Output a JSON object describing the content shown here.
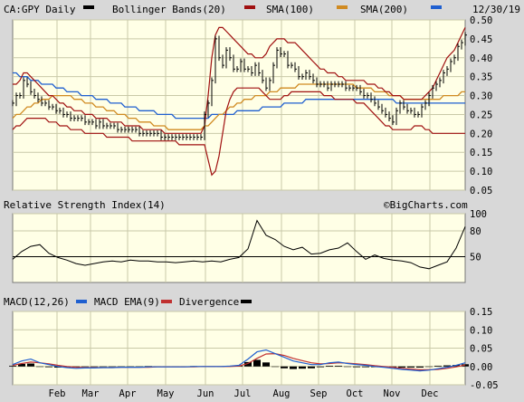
{
  "header": {
    "symbol_label": "CA:GPY Daily",
    "bollinger_label": "Bollinger Bands(20)",
    "sma100_label": "SMA(100)",
    "sma200_label": "SMA(200)",
    "date_label": "12/30/19"
  },
  "watermark": "©BigCharts.com",
  "rsi_panel": {
    "title": "Relative Strength Index(14)"
  },
  "macd_panel": {
    "macd_label": "MACD(12,26)",
    "ema_label": "MACD EMA(9)",
    "divergence_label": "Divergence"
  },
  "colors": {
    "background": "#d8d8d8",
    "panel_bg": "#ffffe6",
    "grid": "#c9c9a8",
    "price": "#000000",
    "bollinger": "#a01010",
    "sma100": "#a01010",
    "sma200": "#d08a20",
    "sma200_alt": "#1f5fd0",
    "macd": "#000000",
    "macd_ema": "#1f5fd0",
    "signal": "#c03030",
    "divergence": "#000000"
  },
  "chart_data": [
    {
      "type": "ohlc",
      "title": "CA:GPY Daily",
      "x_labels": [
        "Feb",
        "Mar",
        "Apr",
        "May",
        "Jun",
        "Jul",
        "Aug",
        "Sep",
        "Oct",
        "Nov",
        "Dec"
      ],
      "y_ticks": [
        0.05,
        0.1,
        0.15,
        0.2,
        0.25,
        0.3,
        0.35,
        0.4,
        0.45,
        0.5
      ],
      "y_tick_labels": [
        "0.05",
        "0.10",
        "0.15",
        "0.20",
        "0.25",
        "0.30",
        "0.35",
        "0.40",
        "0.45",
        "0.50"
      ],
      "ylim": [
        0.05,
        0.5
      ],
      "grid": true,
      "close_x": [
        0,
        4,
        8,
        12,
        16,
        20,
        24,
        28,
        32,
        36,
        40,
        44,
        48,
        52,
        56,
        60,
        64,
        68,
        72,
        76,
        80,
        84,
        88,
        92,
        96,
        100,
        104,
        108,
        112,
        116,
        120,
        124,
        128,
        132,
        136,
        140,
        144,
        148,
        152,
        156,
        160,
        164,
        168,
        172,
        176,
        180,
        184,
        188,
        192,
        196,
        200,
        204,
        208,
        212,
        216,
        220,
        224,
        228,
        232,
        236,
        240,
        244,
        248,
        252,
        256,
        260,
        264,
        268,
        272,
        276,
        280,
        284,
        288,
        292,
        296,
        300,
        304,
        308,
        312,
        316,
        320,
        324,
        328,
        332,
        336,
        340,
        344,
        348,
        352,
        356,
        360,
        364,
        368,
        372,
        376,
        380,
        384,
        388,
        392,
        396,
        400,
        404,
        408,
        412,
        416,
        420,
        424,
        428,
        432,
        436,
        440,
        444,
        448,
        452,
        456,
        460,
        464,
        468,
        472,
        476,
        480,
        484,
        488,
        492,
        496,
        500
      ],
      "close": [
        0.28,
        0.3,
        0.3,
        0.34,
        0.33,
        0.31,
        0.3,
        0.29,
        0.28,
        0.28,
        0.27,
        0.27,
        0.26,
        0.26,
        0.25,
        0.25,
        0.24,
        0.24,
        0.24,
        0.24,
        0.23,
        0.23,
        0.23,
        0.22,
        0.23,
        0.22,
        0.22,
        0.22,
        0.22,
        0.21,
        0.21,
        0.21,
        0.21,
        0.21,
        0.21,
        0.2,
        0.2,
        0.2,
        0.2,
        0.2,
        0.2,
        0.19,
        0.19,
        0.19,
        0.19,
        0.19,
        0.19,
        0.19,
        0.19,
        0.19,
        0.19,
        0.19,
        0.19,
        0.25,
        0.28,
        0.34,
        0.45,
        0.4,
        0.38,
        0.42,
        0.4,
        0.37,
        0.37,
        0.39,
        0.37,
        0.37,
        0.36,
        0.38,
        0.36,
        0.34,
        0.32,
        0.34,
        0.38,
        0.42,
        0.41,
        0.41,
        0.38,
        0.38,
        0.37,
        0.35,
        0.35,
        0.36,
        0.35,
        0.34,
        0.33,
        0.33,
        0.33,
        0.32,
        0.33,
        0.33,
        0.33,
        0.33,
        0.32,
        0.32,
        0.32,
        0.32,
        0.31,
        0.3,
        0.3,
        0.29,
        0.28,
        0.27,
        0.26,
        0.25,
        0.24,
        0.23,
        0.26,
        0.28,
        0.27,
        0.26,
        0.26,
        0.25,
        0.25,
        0.27,
        0.28,
        0.3,
        0.32,
        0.33,
        0.34,
        0.36,
        0.37,
        0.39,
        0.4,
        0.43,
        0.44,
        0.46
      ],
      "bb_upper": [
        0.33,
        0.33,
        0.34,
        0.36,
        0.36,
        0.35,
        0.34,
        0.33,
        0.32,
        0.31,
        0.3,
        0.3,
        0.29,
        0.28,
        0.28,
        0.27,
        0.27,
        0.26,
        0.26,
        0.26,
        0.25,
        0.25,
        0.25,
        0.24,
        0.24,
        0.24,
        0.24,
        0.23,
        0.23,
        0.23,
        0.23,
        0.22,
        0.22,
        0.22,
        0.22,
        0.22,
        0.21,
        0.21,
        0.21,
        0.21,
        0.21,
        0.21,
        0.2,
        0.2,
        0.2,
        0.2,
        0.2,
        0.2,
        0.2,
        0.2,
        0.2,
        0.2,
        0.2,
        0.22,
        0.3,
        0.4,
        0.46,
        0.48,
        0.48,
        0.47,
        0.46,
        0.45,
        0.44,
        0.43,
        0.42,
        0.41,
        0.41,
        0.4,
        0.4,
        0.4,
        0.41,
        0.43,
        0.44,
        0.45,
        0.45,
        0.45,
        0.44,
        0.44,
        0.44,
        0.43,
        0.42,
        0.41,
        0.4,
        0.39,
        0.38,
        0.37,
        0.37,
        0.36,
        0.36,
        0.36,
        0.35,
        0.35,
        0.34,
        0.34,
        0.34,
        0.34,
        0.34,
        0.34,
        0.33,
        0.33,
        0.33,
        0.32,
        0.32,
        0.31,
        0.31,
        0.3,
        0.3,
        0.3,
        0.29,
        0.29,
        0.29,
        0.29,
        0.29,
        0.29,
        0.3,
        0.31,
        0.32,
        0.34,
        0.36,
        0.38,
        0.4,
        0.41,
        0.42,
        0.44,
        0.46,
        0.48
      ],
      "bb_lower": [
        0.21,
        0.22,
        0.22,
        0.23,
        0.24,
        0.24,
        0.24,
        0.24,
        0.24,
        0.24,
        0.23,
        0.23,
        0.23,
        0.22,
        0.22,
        0.22,
        0.21,
        0.21,
        0.21,
        0.21,
        0.2,
        0.2,
        0.2,
        0.2,
        0.2,
        0.2,
        0.19,
        0.19,
        0.19,
        0.19,
        0.19,
        0.19,
        0.19,
        0.18,
        0.18,
        0.18,
        0.18,
        0.18,
        0.18,
        0.18,
        0.18,
        0.18,
        0.18,
        0.18,
        0.18,
        0.18,
        0.17,
        0.17,
        0.17,
        0.17,
        0.17,
        0.17,
        0.17,
        0.17,
        0.13,
        0.09,
        0.1,
        0.14,
        0.2,
        0.26,
        0.29,
        0.31,
        0.32,
        0.32,
        0.32,
        0.32,
        0.32,
        0.32,
        0.32,
        0.31,
        0.3,
        0.29,
        0.29,
        0.29,
        0.29,
        0.3,
        0.3,
        0.31,
        0.31,
        0.31,
        0.31,
        0.31,
        0.31,
        0.31,
        0.31,
        0.31,
        0.3,
        0.3,
        0.3,
        0.29,
        0.29,
        0.29,
        0.29,
        0.29,
        0.29,
        0.28,
        0.28,
        0.28,
        0.27,
        0.26,
        0.25,
        0.24,
        0.23,
        0.22,
        0.22,
        0.21,
        0.21,
        0.21,
        0.21,
        0.21,
        0.21,
        0.22,
        0.22,
        0.22,
        0.21,
        0.21,
        0.2,
        0.2,
        0.2,
        0.2,
        0.2,
        0.2,
        0.2,
        0.2,
        0.2,
        0.2
      ],
      "sma100": [
        0.24,
        0.25,
        0.25,
        0.26,
        0.27,
        0.27,
        0.28,
        0.28,
        0.29,
        0.29,
        0.29,
        0.3,
        0.3,
        0.3,
        0.3,
        0.3,
        0.3,
        0.29,
        0.29,
        0.29,
        0.28,
        0.28,
        0.28,
        0.27,
        0.27,
        0.27,
        0.26,
        0.26,
        0.26,
        0.25,
        0.25,
        0.25,
        0.24,
        0.24,
        0.24,
        0.23,
        0.23,
        0.23,
        0.23,
        0.22,
        0.22,
        0.22,
        0.22,
        0.21,
        0.21,
        0.21,
        0.21,
        0.21,
        0.21,
        0.21,
        0.21,
        0.21,
        0.21,
        0.22,
        0.22,
        0.23,
        0.24,
        0.25,
        0.25,
        0.26,
        0.27,
        0.27,
        0.28,
        0.28,
        0.29,
        0.29,
        0.29,
        0.3,
        0.3,
        0.3,
        0.3,
        0.31,
        0.31,
        0.31,
        0.32,
        0.32,
        0.32,
        0.32,
        0.32,
        0.33,
        0.33,
        0.33,
        0.33,
        0.33,
        0.33,
        0.33,
        0.33,
        0.33,
        0.33,
        0.33,
        0.33,
        0.33,
        0.33,
        0.33,
        0.33,
        0.32,
        0.32,
        0.32,
        0.32,
        0.32,
        0.31,
        0.31,
        0.31,
        0.31,
        0.3,
        0.3,
        0.3,
        0.3,
        0.29,
        0.29,
        0.29,
        0.29,
        0.29,
        0.29,
        0.29,
        0.29,
        0.29,
        0.29,
        0.29,
        0.3,
        0.3,
        0.3,
        0.3,
        0.3,
        0.31,
        0.31
      ],
      "sma200": [
        0.36,
        0.36,
        0.35,
        0.35,
        0.35,
        0.34,
        0.34,
        0.34,
        0.33,
        0.33,
        0.33,
        0.33,
        0.32,
        0.32,
        0.32,
        0.31,
        0.31,
        0.31,
        0.31,
        0.3,
        0.3,
        0.3,
        0.3,
        0.29,
        0.29,
        0.29,
        0.29,
        0.28,
        0.28,
        0.28,
        0.28,
        0.27,
        0.27,
        0.27,
        0.27,
        0.26,
        0.26,
        0.26,
        0.26,
        0.26,
        0.25,
        0.25,
        0.25,
        0.25,
        0.25,
        0.24,
        0.24,
        0.24,
        0.24,
        0.24,
        0.24,
        0.24,
        0.24,
        0.24,
        0.24,
        0.25,
        0.25,
        0.25,
        0.25,
        0.25,
        0.25,
        0.25,
        0.26,
        0.26,
        0.26,
        0.26,
        0.26,
        0.26,
        0.26,
        0.27,
        0.27,
        0.27,
        0.27,
        0.27,
        0.27,
        0.28,
        0.28,
        0.28,
        0.28,
        0.28,
        0.28,
        0.29,
        0.29,
        0.29,
        0.29,
        0.29,
        0.29,
        0.29,
        0.29,
        0.29,
        0.29,
        0.29,
        0.29,
        0.29,
        0.29,
        0.29,
        0.29,
        0.29,
        0.29,
        0.29,
        0.29,
        0.29,
        0.29,
        0.29,
        0.29,
        0.29,
        0.28,
        0.28,
        0.28,
        0.28,
        0.28,
        0.28,
        0.28,
        0.28,
        0.28,
        0.28,
        0.28,
        0.28,
        0.28,
        0.28,
        0.28,
        0.28,
        0.28,
        0.28,
        0.28,
        0.28
      ]
    },
    {
      "type": "line",
      "title": "Relative Strength Index(14)",
      "y_ticks": [
        50,
        80,
        100
      ],
      "y_tick_labels": [
        "50",
        "80",
        "100"
      ],
      "ylim": [
        20,
        100
      ],
      "grid": true,
      "reference_level": 50,
      "x": [
        0,
        10,
        20,
        30,
        40,
        50,
        60,
        70,
        80,
        90,
        100,
        110,
        120,
        130,
        140,
        150,
        160,
        170,
        180,
        190,
        200,
        210,
        220,
        230,
        240,
        250,
        260,
        270,
        280,
        290,
        300,
        310,
        320,
        330,
        340,
        350,
        360,
        370,
        380,
        390,
        400,
        410,
        420,
        430,
        440,
        450,
        460,
        470,
        480,
        490,
        500
      ],
      "values": [
        47,
        56,
        62,
        64,
        54,
        49,
        46,
        42,
        40,
        42,
        44,
        45,
        44,
        46,
        45,
        45,
        44,
        44,
        43,
        44,
        45,
        44,
        45,
        44,
        47,
        49,
        59,
        92,
        75,
        70,
        62,
        58,
        61,
        53,
        54,
        58,
        60,
        66,
        56,
        47,
        52,
        48,
        46,
        45,
        43,
        38,
        36,
        40,
        44,
        60,
        85
      ]
    },
    {
      "type": "line",
      "title": "MACD(12,26)",
      "y_ticks": [
        -0.05,
        0.0,
        0.05,
        0.1,
        0.15
      ],
      "y_tick_labels": [
        "-0.05",
        "0.00",
        "0.05",
        "0.10",
        "0.15"
      ],
      "ylim": [
        -0.05,
        0.15
      ],
      "grid": true,
      "reference_level": 0,
      "series": [
        {
          "name": "MACD(12,26)",
          "x": [
            0,
            10,
            20,
            30,
            40,
            50,
            60,
            70,
            80,
            90,
            100,
            110,
            120,
            130,
            140,
            150,
            160,
            170,
            180,
            190,
            200,
            210,
            220,
            230,
            240,
            250,
            260,
            270,
            280,
            290,
            300,
            310,
            320,
            330,
            340,
            350,
            360,
            370,
            380,
            390,
            400,
            410,
            420,
            430,
            440,
            450,
            460,
            470,
            480,
            490,
            500
          ],
          "values": [
            0.005,
            0.015,
            0.02,
            0.01,
            0.005,
            0.0,
            -0.003,
            -0.005,
            -0.004,
            -0.004,
            -0.003,
            -0.003,
            -0.002,
            -0.002,
            -0.002,
            -0.001,
            -0.001,
            -0.001,
            -0.001,
            -0.001,
            0.0,
            0.0,
            0.0,
            0.0,
            0.001,
            0.003,
            0.02,
            0.04,
            0.045,
            0.035,
            0.025,
            0.015,
            0.01,
            0.005,
            0.005,
            0.01,
            0.012,
            0.008,
            0.005,
            0.003,
            0.0,
            -0.002,
            -0.005,
            -0.008,
            -0.01,
            -0.012,
            -0.01,
            -0.006,
            -0.002,
            0.003,
            0.01
          ]
        },
        {
          "name": "MACD EMA(9)",
          "x": [
            0,
            10,
            20,
            30,
            40,
            50,
            60,
            70,
            80,
            90,
            100,
            110,
            120,
            130,
            140,
            150,
            160,
            170,
            180,
            190,
            200,
            210,
            220,
            230,
            240,
            250,
            260,
            270,
            280,
            290,
            300,
            310,
            320,
            330,
            340,
            350,
            360,
            370,
            380,
            390,
            400,
            410,
            420,
            430,
            440,
            450,
            460,
            470,
            480,
            490,
            500
          ],
          "values": [
            0.003,
            0.008,
            0.012,
            0.01,
            0.007,
            0.003,
            0.0,
            -0.002,
            -0.003,
            -0.003,
            -0.003,
            -0.003,
            -0.002,
            -0.002,
            -0.002,
            -0.002,
            -0.001,
            -0.001,
            -0.001,
            -0.001,
            -0.001,
            0.0,
            0.0,
            0.0,
            0.0,
            0.001,
            0.008,
            0.022,
            0.034,
            0.035,
            0.03,
            0.022,
            0.016,
            0.01,
            0.007,
            0.008,
            0.01,
            0.009,
            0.007,
            0.005,
            0.002,
            0.0,
            -0.002,
            -0.005,
            -0.007,
            -0.009,
            -0.009,
            -0.008,
            -0.005,
            -0.001,
            0.004
          ]
        },
        {
          "name": "Divergence",
          "type": "bar",
          "x": [
            0,
            10,
            20,
            30,
            40,
            50,
            60,
            70,
            80,
            90,
            100,
            110,
            120,
            130,
            140,
            150,
            160,
            170,
            180,
            190,
            200,
            210,
            220,
            230,
            240,
            250,
            260,
            270,
            280,
            290,
            300,
            310,
            320,
            330,
            340,
            350,
            360,
            370,
            380,
            390,
            400,
            410,
            420,
            430,
            440,
            450,
            460,
            470,
            480,
            490,
            500
          ],
          "values": [
            0.002,
            0.007,
            0.008,
            0.0,
            -0.002,
            -0.003,
            -0.003,
            -0.003,
            -0.001,
            -0.001,
            0.0,
            0.0,
            0.0,
            0.0,
            0.0,
            0.001,
            0.0,
            0.0,
            0.0,
            0.0,
            0.001,
            0.0,
            0.0,
            0.0,
            0.001,
            0.002,
            0.012,
            0.018,
            0.011,
            0.0,
            -0.005,
            -0.007,
            -0.006,
            -0.005,
            -0.002,
            0.002,
            0.002,
            -0.001,
            -0.002,
            -0.002,
            -0.002,
            -0.002,
            -0.003,
            -0.003,
            -0.003,
            -0.003,
            -0.001,
            0.002,
            0.003,
            0.004,
            0.006
          ]
        }
      ]
    }
  ]
}
